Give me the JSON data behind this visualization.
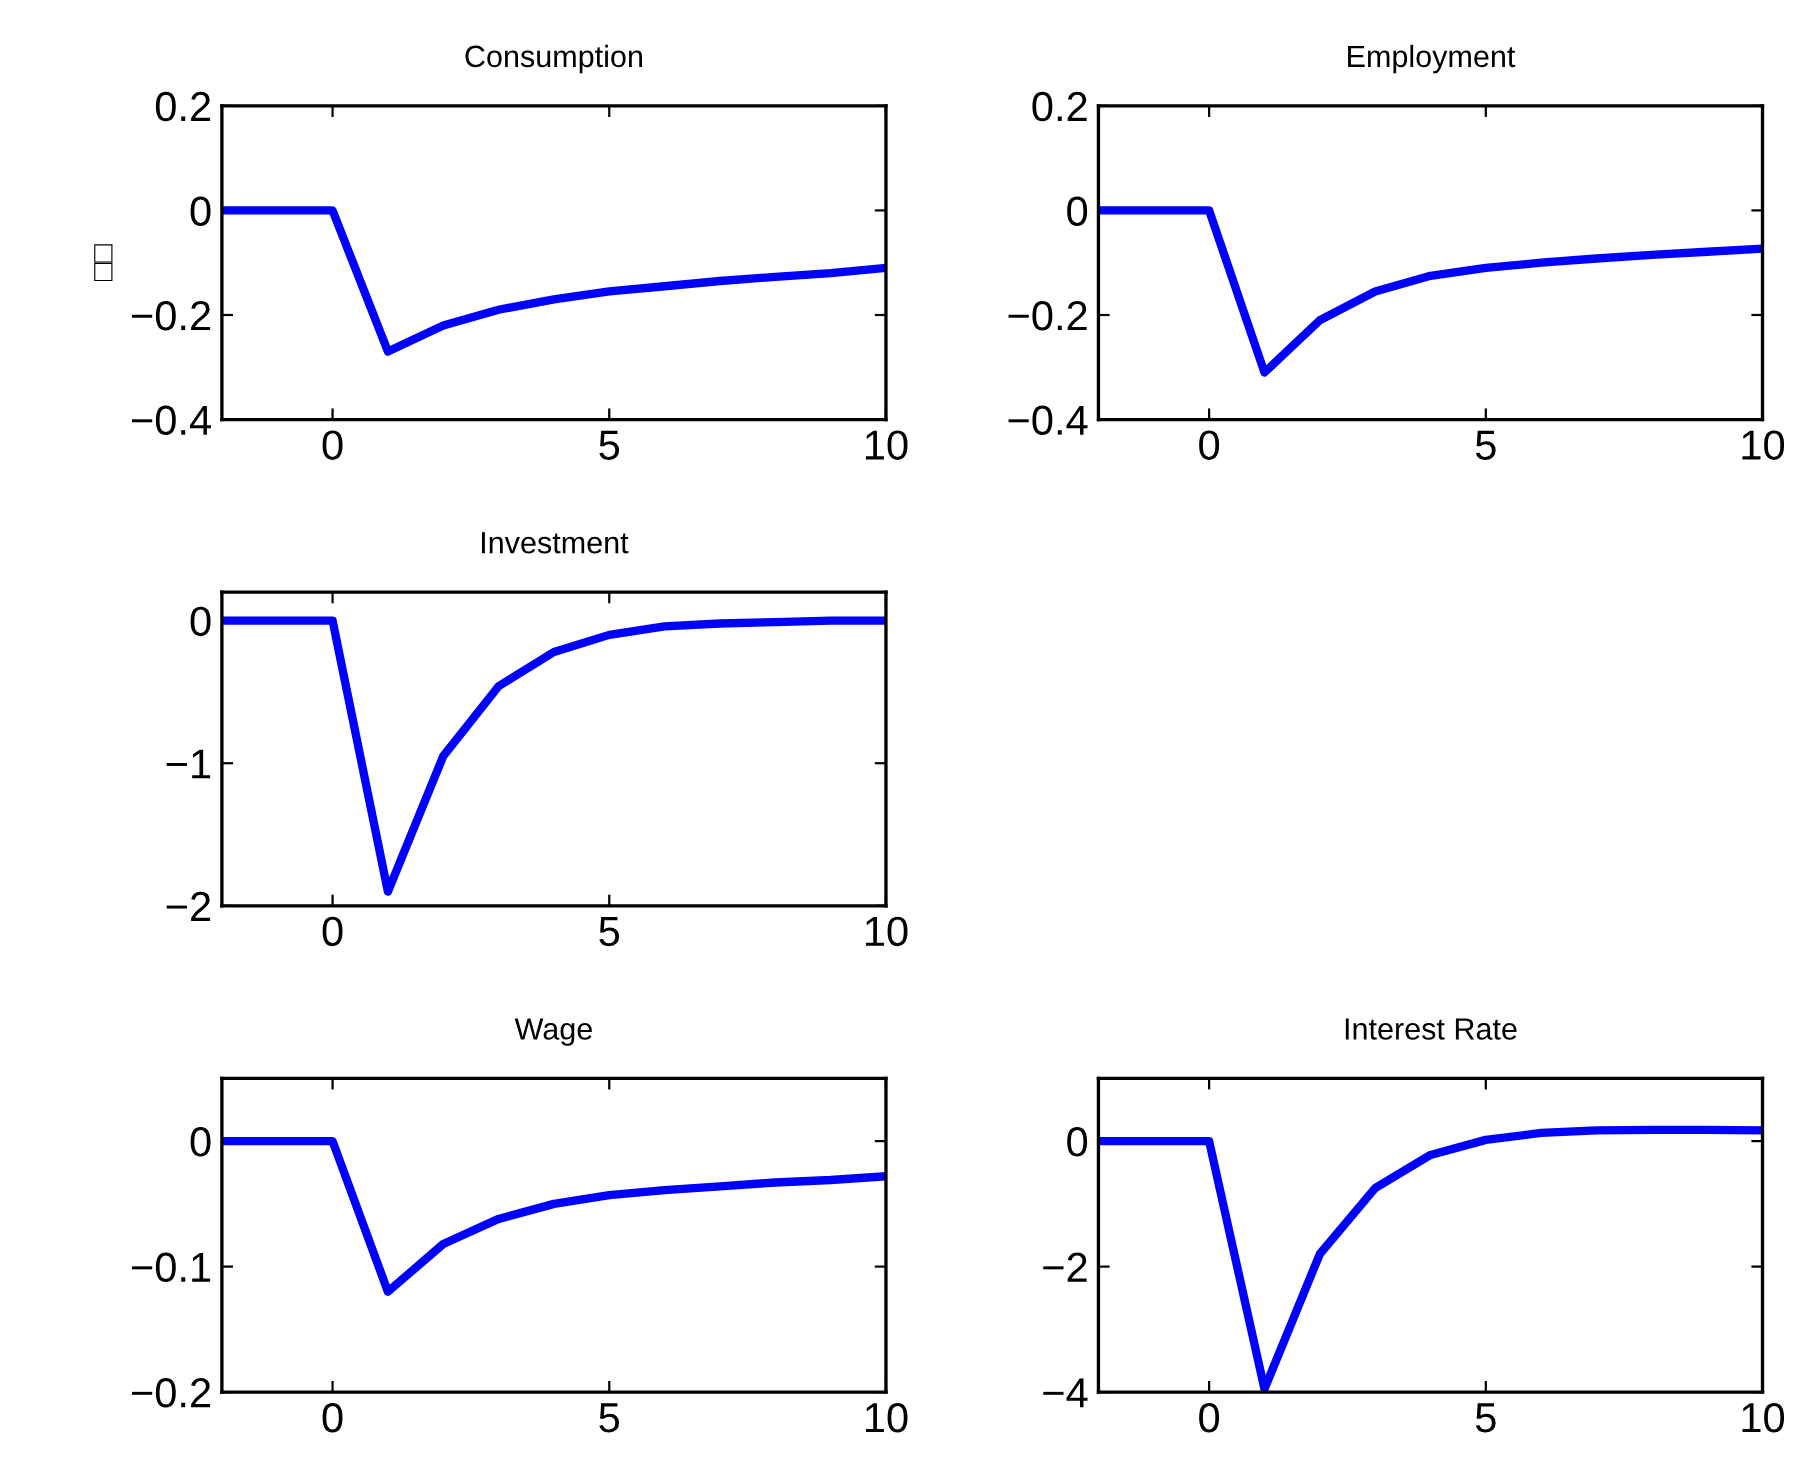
{
  "chart_data": [
    {
      "type": "line",
      "title": "Consumption",
      "ylabel": "□□",
      "x": [
        -2,
        -1,
        0,
        1,
        2,
        3,
        4,
        5,
        6,
        7,
        8,
        9,
        10
      ],
      "series": [
        {
          "color": "#0000ff",
          "values": [
            0,
            0,
            0,
            -0.27,
            -0.22,
            -0.19,
            -0.17,
            -0.155,
            -0.145,
            -0.135,
            -0.127,
            -0.12,
            -0.11
          ]
        }
      ],
      "xlim": [
        -2,
        10
      ],
      "xticks": [
        0,
        5,
        10
      ],
      "ylim": [
        -0.4,
        0.2
      ],
      "yticks": [
        {
          "value": -0.4,
          "label": "−0.4"
        },
        {
          "value": -0.2,
          "label": "−0.2"
        },
        0,
        0.2
      ]
    },
    {
      "type": "line",
      "title": "Employment",
      "x": [
        -2,
        -1,
        0,
        1,
        2,
        3,
        4,
        5,
        6,
        7,
        8,
        9,
        10
      ],
      "series": [
        {
          "color": "#0000ff",
          "values": [
            0,
            0,
            0,
            -0.31,
            -0.21,
            -0.155,
            -0.125,
            -0.11,
            -0.1,
            -0.092,
            -0.085,
            -0.079,
            -0.073
          ]
        }
      ],
      "xlim": [
        -2,
        10
      ],
      "xticks": [
        0,
        5,
        10
      ],
      "ylim": [
        -0.4,
        0.2
      ],
      "yticks": [
        {
          "value": -0.4,
          "label": "−0.4"
        },
        {
          "value": -0.2,
          "label": "−0.2"
        },
        0,
        0.2
      ]
    },
    {
      "type": "line",
      "title": "Investment",
      "x": [
        -2,
        -1,
        0,
        1,
        2,
        3,
        4,
        5,
        6,
        7,
        8,
        9,
        10
      ],
      "series": [
        {
          "color": "#0000ff",
          "values": [
            0,
            0,
            0,
            -1.9,
            -0.95,
            -0.46,
            -0.22,
            -0.1,
            -0.04,
            -0.02,
            -0.01,
            0,
            0
          ]
        }
      ],
      "xlim": [
        -2,
        10
      ],
      "xticks": [
        0,
        5,
        10
      ],
      "ylim": [
        -2,
        0.2
      ],
      "yticks": [
        {
          "value": -2,
          "label": "−2"
        },
        {
          "value": -1,
          "label": "−1"
        },
        0
      ]
    },
    {
      "type": "line",
      "title": "Wage",
      "x": [
        -2,
        -1,
        0,
        1,
        2,
        3,
        4,
        5,
        6,
        7,
        8,
        9,
        10
      ],
      "series": [
        {
          "color": "#0000ff",
          "values": [
            0,
            0,
            0,
            -0.12,
            -0.082,
            -0.062,
            -0.05,
            -0.043,
            -0.039,
            -0.036,
            -0.033,
            -0.031,
            -0.028
          ]
        }
      ],
      "xlim": [
        -2,
        10
      ],
      "xticks": [
        0,
        5,
        10
      ],
      "ylim": [
        -0.2,
        0.05
      ],
      "yticks": [
        {
          "value": -0.2,
          "label": "−0.2"
        },
        {
          "value": -0.1,
          "label": "−0.1"
        },
        0
      ]
    },
    {
      "type": "line",
      "title": "Interest Rate",
      "x": [
        -2,
        -1,
        0,
        1,
        2,
        3,
        4,
        5,
        6,
        7,
        8,
        9,
        10
      ],
      "series": [
        {
          "color": "#0000ff",
          "values": [
            0,
            0,
            0,
            -3.95,
            -1.8,
            -0.75,
            -0.22,
            0.02,
            0.13,
            0.17,
            0.18,
            0.18,
            0.17
          ]
        }
      ],
      "xlim": [
        -2,
        10
      ],
      "xticks": [
        0,
        5,
        10
      ],
      "ylim": [
        -4,
        1
      ],
      "yticks": [
        {
          "value": -4,
          "label": "−4"
        },
        {
          "value": -2,
          "label": "−2"
        },
        0
      ]
    }
  ]
}
